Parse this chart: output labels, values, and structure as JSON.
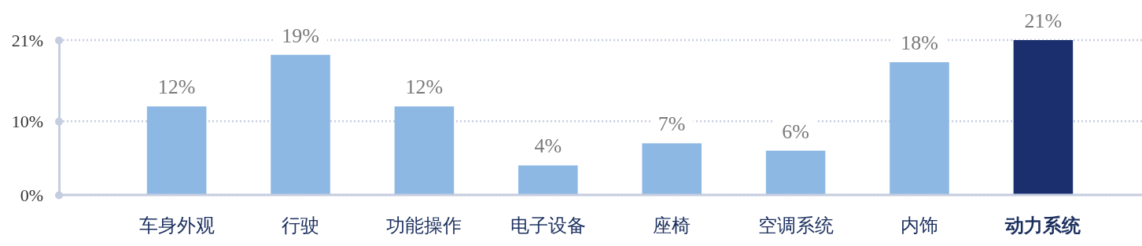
{
  "chart_data": {
    "type": "bar",
    "categories": [
      "车身外观",
      "行驶",
      "功能操作",
      "电子设备",
      "座椅",
      "空调系统",
      "内饰",
      "动力系统"
    ],
    "values": [
      12,
      19,
      12,
      4,
      7,
      6,
      18,
      21
    ],
    "colors": [
      "#8db8e3",
      "#8db8e3",
      "#8db8e3",
      "#8db8e3",
      "#8db8e3",
      "#8db8e3",
      "#8db8e3",
      "#1b2f6e"
    ],
    "value_labels": [
      "12%",
      "19%",
      "12%",
      "4%",
      "7%",
      "6%",
      "18%",
      "21%"
    ],
    "ylim": [
      0,
      21
    ],
    "yticks": [
      {
        "value": 0,
        "label": "0%"
      },
      {
        "value": 10,
        "label": "10%"
      },
      {
        "value": 21,
        "label": "21%"
      }
    ],
    "grid": "y"
  }
}
